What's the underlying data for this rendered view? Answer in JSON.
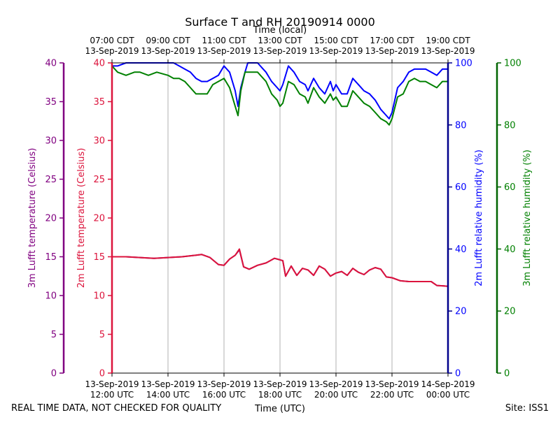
{
  "chart_data": {
    "type": "line",
    "title": "Surface T and RH 20190914 0000",
    "top_axis_label": "Time (local)",
    "top_ticks": [
      {
        "hour": 12,
        "line1": "07:00 CDT",
        "line2": "13-Sep-2019"
      },
      {
        "hour": 14,
        "line1": "09:00 CDT",
        "line2": "13-Sep-2019"
      },
      {
        "hour": 16,
        "line1": "11:00 CDT",
        "line2": "13-Sep-2019"
      },
      {
        "hour": 18,
        "line1": "13:00 CDT",
        "line2": "13-Sep-2019"
      },
      {
        "hour": 20,
        "line1": "15:00 CDT",
        "line2": "13-Sep-2019"
      },
      {
        "hour": 22,
        "line1": "17:00 CDT",
        "line2": "13-Sep-2019"
      },
      {
        "hour": 24,
        "line1": "19:00 CDT",
        "line2": "13-Sep-2019"
      }
    ],
    "bottom_axis_label": "Time (UTC)",
    "bottom_ticks": [
      {
        "hour": 12,
        "line1": "13-Sep-2019",
        "line2": "12:00 UTC"
      },
      {
        "hour": 14,
        "line1": "13-Sep-2019",
        "line2": "14:00 UTC"
      },
      {
        "hour": 16,
        "line1": "13-Sep-2019",
        "line2": "16:00 UTC"
      },
      {
        "hour": 18,
        "line1": "13-Sep-2019",
        "line2": "18:00 UTC"
      },
      {
        "hour": 20,
        "line1": "13-Sep-2019",
        "line2": "20:00 UTC"
      },
      {
        "hour": 22,
        "line1": "13-Sep-2019",
        "line2": "22:00 UTC"
      },
      {
        "hour": 24,
        "line1": "14-Sep-2019",
        "line2": "00:00 UTC"
      }
    ],
    "x_range_hours_utc": [
      12,
      24
    ],
    "grid": "vertical lines at each bottom tick",
    "axes": {
      "t3m": {
        "label": "3m Lufft temperature (Celsius)",
        "color": "#800080",
        "range": [
          0,
          40
        ],
        "ticks": [
          0,
          5,
          10,
          15,
          20,
          25,
          30,
          35,
          40
        ]
      },
      "t2m": {
        "label": "2m Lufft temperature (Celsius)",
        "color": "#dc143c",
        "range": [
          0,
          40
        ],
        "ticks": [
          0,
          5,
          10,
          15,
          20,
          25,
          30,
          35,
          40
        ]
      },
      "rh2m": {
        "label": "2m Lufft relative humidity (%)",
        "color": "#0000ff",
        "axis_color": "#00008b",
        "range": [
          0,
          100
        ],
        "ticks": [
          0,
          20,
          40,
          60,
          80,
          100
        ]
      },
      "rh3m": {
        "label": "3m Lufft relative humidity (%)",
        "color": "#008000",
        "axis_color": "#006400",
        "range": [
          0,
          100
        ],
        "ticks": [
          0,
          20,
          40,
          60,
          80,
          100
        ]
      }
    },
    "series": [
      {
        "key": "rh2m",
        "color": "#0000ff",
        "x": [
          12.0,
          12.2,
          12.5,
          12.8,
          13.0,
          13.3,
          13.6,
          14.0,
          14.2,
          14.4,
          14.6,
          14.8,
          15.0,
          15.2,
          15.4,
          15.6,
          15.8,
          16.0,
          16.2,
          16.4,
          16.5,
          16.6,
          16.75,
          16.85,
          17.0,
          17.2,
          17.4,
          17.5,
          17.7,
          17.9,
          18.0,
          18.1,
          18.3,
          18.5,
          18.7,
          18.9,
          19.0,
          19.2,
          19.4,
          19.6,
          19.8,
          19.9,
          20.0,
          20.2,
          20.4,
          20.6,
          20.8,
          21.0,
          21.2,
          21.4,
          21.6,
          21.8,
          21.9,
          22.0,
          22.2,
          22.4,
          22.6,
          22.8,
          23.0,
          23.2,
          23.4,
          23.6,
          23.8,
          24.0
        ],
        "y": [
          99,
          99,
          100,
          100,
          100,
          100,
          100,
          100,
          100,
          99,
          98,
          97,
          95,
          94,
          94,
          95,
          96,
          99,
          97,
          91,
          86,
          92,
          97,
          100,
          100,
          100,
          98,
          97,
          94,
          92,
          91,
          93,
          99,
          97,
          94,
          93,
          91,
          95,
          92,
          90,
          94,
          91,
          93,
          90,
          90,
          95,
          93,
          91,
          90,
          88,
          85,
          83,
          82,
          84,
          92,
          94,
          97,
          98,
          98,
          98,
          97,
          96,
          98,
          98
        ]
      },
      {
        "key": "rh3m",
        "color": "#008000",
        "x": [
          12.0,
          12.2,
          12.5,
          12.8,
          13.0,
          13.3,
          13.6,
          14.0,
          14.2,
          14.4,
          14.6,
          14.8,
          15.0,
          15.2,
          15.4,
          15.6,
          15.8,
          16.0,
          16.2,
          16.4,
          16.5,
          16.6,
          16.75,
          16.85,
          17.0,
          17.2,
          17.4,
          17.5,
          17.7,
          17.9,
          18.0,
          18.1,
          18.3,
          18.5,
          18.7,
          18.9,
          19.0,
          19.2,
          19.4,
          19.6,
          19.8,
          19.9,
          20.0,
          20.2,
          20.4,
          20.6,
          20.8,
          21.0,
          21.2,
          21.4,
          21.6,
          21.8,
          21.9,
          22.0,
          22.2,
          22.4,
          22.6,
          22.8,
          23.0,
          23.2,
          23.4,
          23.6,
          23.8,
          24.0
        ],
        "y": [
          99,
          97,
          96,
          97,
          97,
          96,
          97,
          96,
          95,
          95,
          94,
          92,
          90,
          90,
          90,
          93,
          94,
          95,
          92,
          86,
          83,
          91,
          97,
          97,
          97,
          97,
          95,
          94,
          90,
          88,
          86,
          87,
          94,
          93,
          90,
          89,
          87,
          92,
          89,
          87,
          90,
          88,
          89,
          86,
          86,
          91,
          89,
          87,
          86,
          84,
          82,
          81,
          80,
          82,
          89,
          90,
          94,
          95,
          94,
          94,
          93,
          92,
          94,
          94
        ]
      },
      {
        "key": "t3m",
        "color": "#800080",
        "x": [
          12.0,
          12.5,
          13.0,
          13.5,
          14.0,
          14.5,
          15.0,
          15.2,
          15.5,
          15.8,
          16.0,
          16.2,
          16.4,
          16.55,
          16.7,
          16.9,
          17.2,
          17.5,
          17.8,
          18.0,
          18.1,
          18.2,
          18.4,
          18.6,
          18.8,
          19.0,
          19.2,
          19.4,
          19.6,
          19.8,
          20.0,
          20.2,
          20.4,
          20.6,
          20.8,
          21.0,
          21.2,
          21.4,
          21.6,
          21.8,
          22.0,
          22.3,
          22.6,
          23.0,
          23.4,
          23.6,
          24.0
        ],
        "y": [
          15.0,
          15.0,
          14.9,
          14.8,
          14.9,
          15.0,
          15.2,
          15.3,
          14.9,
          14.0,
          13.9,
          14.7,
          15.2,
          15.9,
          13.7,
          13.4,
          13.9,
          14.2,
          14.8,
          14.6,
          14.5,
          12.5,
          13.8,
          12.6,
          13.5,
          13.3,
          12.6,
          13.8,
          13.4,
          12.5,
          12.9,
          13.1,
          12.6,
          13.5,
          13.0,
          12.7,
          13.3,
          13.6,
          13.4,
          12.4,
          12.3,
          11.9,
          11.8,
          11.8,
          11.8,
          11.3,
          11.2
        ]
      },
      {
        "key": "t2m",
        "color": "#dc143c",
        "x": [
          12.0,
          12.5,
          13.0,
          13.5,
          14.0,
          14.5,
          15.0,
          15.2,
          15.5,
          15.8,
          16.0,
          16.2,
          16.4,
          16.55,
          16.7,
          16.9,
          17.2,
          17.5,
          17.8,
          18.0,
          18.1,
          18.2,
          18.4,
          18.6,
          18.8,
          19.0,
          19.2,
          19.4,
          19.6,
          19.8,
          20.0,
          20.2,
          20.4,
          20.6,
          20.8,
          21.0,
          21.2,
          21.4,
          21.6,
          21.8,
          22.0,
          22.3,
          22.6,
          23.0,
          23.4,
          23.6,
          24.0
        ],
        "y": [
          15.0,
          15.0,
          14.9,
          14.8,
          14.9,
          15.0,
          15.2,
          15.3,
          14.9,
          14.0,
          13.9,
          14.7,
          15.2,
          16.0,
          13.7,
          13.4,
          13.9,
          14.2,
          14.8,
          14.6,
          14.5,
          12.5,
          13.8,
          12.6,
          13.5,
          13.3,
          12.6,
          13.8,
          13.4,
          12.5,
          12.9,
          13.1,
          12.6,
          13.5,
          13.0,
          12.7,
          13.3,
          13.6,
          13.4,
          12.4,
          12.3,
          11.9,
          11.8,
          11.8,
          11.8,
          11.3,
          11.2
        ]
      }
    ]
  },
  "footer": {
    "left_note": "REAL TIME DATA, NOT CHECKED FOR QUALITY",
    "site": "Site: ISS1"
  }
}
